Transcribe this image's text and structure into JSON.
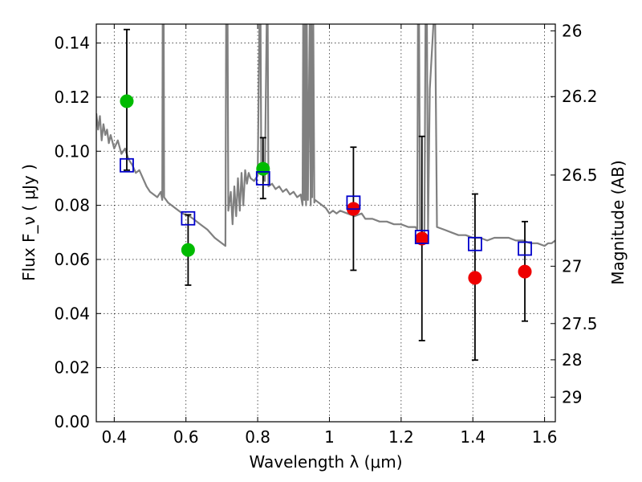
{
  "chart_data": {
    "type": "scatter",
    "xlabel": "Wavelength  λ (μm)",
    "ylabel": "Flux  F_ν  ( μJy )",
    "y2label": "Magnitude (AB)",
    "xlim": [
      0.35,
      1.63
    ],
    "ylim": [
      0.0,
      0.147
    ],
    "grid": true,
    "x_ticks": [
      0.4,
      0.6,
      0.8,
      1.0,
      1.2,
      1.4,
      1.6
    ],
    "x_tick_labels": [
      "0.4",
      "0.6",
      "0.8",
      "1",
      "1.2",
      "1.4",
      "1.6"
    ],
    "y_ticks": [
      0.0,
      0.02,
      0.04,
      0.06,
      0.08,
      0.1,
      0.12,
      0.14
    ],
    "y_tick_labels": [
      "0.00",
      "0.02",
      "0.04",
      "0.06",
      "0.08",
      "0.10",
      "0.12",
      "0.14"
    ],
    "mag_ticks": [
      {
        "label": "26",
        "flux": 0.1445
      },
      {
        "label": "26.2",
        "flux": 0.1202
      },
      {
        "label": "26.5",
        "flux": 0.0912
      },
      {
        "label": "27",
        "flux": 0.0575
      },
      {
        "label": "27.5",
        "flux": 0.0363
      },
      {
        "label": "28",
        "flux": 0.0229
      },
      {
        "label": "29",
        "flux": 0.0091
      }
    ],
    "colors": {
      "model": "#808080",
      "green": "#00bb00",
      "red": "#ee0000",
      "model_box": "#0000cc",
      "errorbar": "#000000"
    },
    "series": [
      {
        "marker": "circle-green",
        "points": [
          {
            "x": 0.435,
            "y": 0.1185,
            "yerr_low": 0.093,
            "yerr_high": 0.145
          },
          {
            "x": 0.606,
            "y": 0.0635,
            "yerr_low": 0.0505,
            "yerr_high": 0.0765
          },
          {
            "x": 0.815,
            "y": 0.0935,
            "yerr_low": 0.0825,
            "yerr_high": 0.105
          }
        ]
      },
      {
        "marker": "circle-red",
        "points": [
          {
            "x": 1.067,
            "y": 0.0787,
            "yerr_low": 0.056,
            "yerr_high": 0.1015
          },
          {
            "x": 1.258,
            "y": 0.0677,
            "yerr_low": 0.03,
            "yerr_high": 0.1055
          },
          {
            "x": 1.406,
            "y": 0.0532,
            "yerr_low": 0.0228,
            "yerr_high": 0.0842
          },
          {
            "x": 1.545,
            "y": 0.0555,
            "yerr_low": 0.0372,
            "yerr_high": 0.074
          }
        ]
      },
      {
        "marker": "open-square-blue",
        "points": [
          {
            "x": 0.435,
            "y": 0.0948
          },
          {
            "x": 0.606,
            "y": 0.0752
          },
          {
            "x": 0.815,
            "y": 0.09
          },
          {
            "x": 1.067,
            "y": 0.081
          },
          {
            "x": 1.258,
            "y": 0.0683
          },
          {
            "x": 1.406,
            "y": 0.0657
          },
          {
            "x": 1.545,
            "y": 0.064
          }
        ]
      }
    ],
    "model_spectrum": [
      [
        0.35,
        0.114
      ],
      [
        0.355,
        0.108
      ],
      [
        0.36,
        0.113
      ],
      [
        0.365,
        0.104
      ],
      [
        0.37,
        0.11
      ],
      [
        0.375,
        0.106
      ],
      [
        0.38,
        0.108
      ],
      [
        0.385,
        0.103
      ],
      [
        0.39,
        0.106
      ],
      [
        0.4,
        0.101
      ],
      [
        0.41,
        0.104
      ],
      [
        0.42,
        0.099
      ],
      [
        0.43,
        0.101
      ],
      [
        0.44,
        0.097
      ],
      [
        0.45,
        0.095
      ],
      [
        0.46,
        0.092
      ],
      [
        0.47,
        0.093
      ],
      [
        0.48,
        0.09
      ],
      [
        0.49,
        0.087
      ],
      [
        0.5,
        0.085
      ],
      [
        0.51,
        0.084
      ],
      [
        0.52,
        0.083
      ],
      [
        0.53,
        0.085
      ],
      [
        0.534,
        0.082
      ],
      [
        0.535,
        0.147
      ],
      [
        0.538,
        0.147
      ],
      [
        0.539,
        0.083
      ],
      [
        0.55,
        0.081
      ],
      [
        0.57,
        0.079
      ],
      [
        0.59,
        0.077
      ],
      [
        0.61,
        0.076
      ],
      [
        0.62,
        0.075
      ],
      [
        0.64,
        0.073
      ],
      [
        0.66,
        0.071
      ],
      [
        0.68,
        0.068
      ],
      [
        0.7,
        0.066
      ],
      [
        0.71,
        0.065
      ],
      [
        0.712,
        0.147
      ],
      [
        0.716,
        0.147
      ],
      [
        0.718,
        0.078
      ],
      [
        0.725,
        0.085
      ],
      [
        0.73,
        0.073
      ],
      [
        0.735,
        0.087
      ],
      [
        0.74,
        0.076
      ],
      [
        0.745,
        0.09
      ],
      [
        0.75,
        0.078
      ],
      [
        0.755,
        0.092
      ],
      [
        0.76,
        0.08
      ],
      [
        0.765,
        0.093
      ],
      [
        0.77,
        0.088
      ],
      [
        0.775,
        0.092
      ],
      [
        0.78,
        0.09
      ],
      [
        0.79,
        0.089
      ],
      [
        0.8,
        0.091
      ],
      [
        0.805,
        0.147
      ],
      [
        0.808,
        0.147
      ],
      [
        0.81,
        0.092
      ],
      [
        0.815,
        0.091
      ],
      [
        0.82,
        0.089
      ],
      [
        0.825,
        0.147
      ],
      [
        0.828,
        0.147
      ],
      [
        0.83,
        0.087
      ],
      [
        0.84,
        0.088
      ],
      [
        0.85,
        0.086
      ],
      [
        0.86,
        0.087
      ],
      [
        0.87,
        0.085
      ],
      [
        0.88,
        0.086
      ],
      [
        0.89,
        0.084
      ],
      [
        0.9,
        0.085
      ],
      [
        0.91,
        0.083
      ],
      [
        0.92,
        0.084
      ],
      [
        0.925,
        0.08
      ],
      [
        0.927,
        0.147
      ],
      [
        0.93,
        0.082
      ],
      [
        0.932,
        0.147
      ],
      [
        0.935,
        0.08
      ],
      [
        0.937,
        0.147
      ],
      [
        0.94,
        0.082
      ],
      [
        0.945,
        0.147
      ],
      [
        0.948,
        0.08
      ],
      [
        0.95,
        0.147
      ],
      [
        0.952,
        0.083
      ],
      [
        0.955,
        0.147
      ],
      [
        0.958,
        0.081
      ],
      [
        0.96,
        0.082
      ],
      [
        0.97,
        0.081
      ],
      [
        0.98,
        0.08
      ],
      [
        0.99,
        0.079
      ],
      [
        1.0,
        0.077
      ],
      [
        1.01,
        0.078
      ],
      [
        1.02,
        0.077
      ],
      [
        1.03,
        0.078
      ],
      [
        1.05,
        0.077
      ],
      [
        1.07,
        0.076
      ],
      [
        1.09,
        0.077
      ],
      [
        1.1,
        0.075
      ],
      [
        1.12,
        0.075
      ],
      [
        1.14,
        0.074
      ],
      [
        1.16,
        0.074
      ],
      [
        1.18,
        0.073
      ],
      [
        1.2,
        0.073
      ],
      [
        1.22,
        0.072
      ],
      [
        1.24,
        0.072
      ],
      [
        1.245,
        0.071
      ],
      [
        1.247,
        0.147
      ],
      [
        1.25,
        0.147
      ],
      [
        1.253,
        0.071
      ],
      [
        1.26,
        0.07
      ],
      [
        1.265,
        0.069
      ],
      [
        1.268,
        0.147
      ],
      [
        1.272,
        0.147
      ],
      [
        1.275,
        0.071
      ],
      [
        1.28,
        0.123
      ],
      [
        1.29,
        0.147
      ],
      [
        1.295,
        0.147
      ],
      [
        1.3,
        0.072
      ],
      [
        1.32,
        0.071
      ],
      [
        1.34,
        0.07
      ],
      [
        1.36,
        0.069
      ],
      [
        1.38,
        0.069
      ],
      [
        1.4,
        0.068
      ],
      [
        1.42,
        0.068
      ],
      [
        1.44,
        0.067
      ],
      [
        1.46,
        0.068
      ],
      [
        1.48,
        0.068
      ],
      [
        1.5,
        0.068
      ],
      [
        1.52,
        0.067
      ],
      [
        1.54,
        0.067
      ],
      [
        1.56,
        0.066
      ],
      [
        1.58,
        0.066
      ],
      [
        1.6,
        0.065
      ],
      [
        1.61,
        0.066
      ],
      [
        1.62,
        0.066
      ],
      [
        1.63,
        0.067
      ]
    ]
  }
}
